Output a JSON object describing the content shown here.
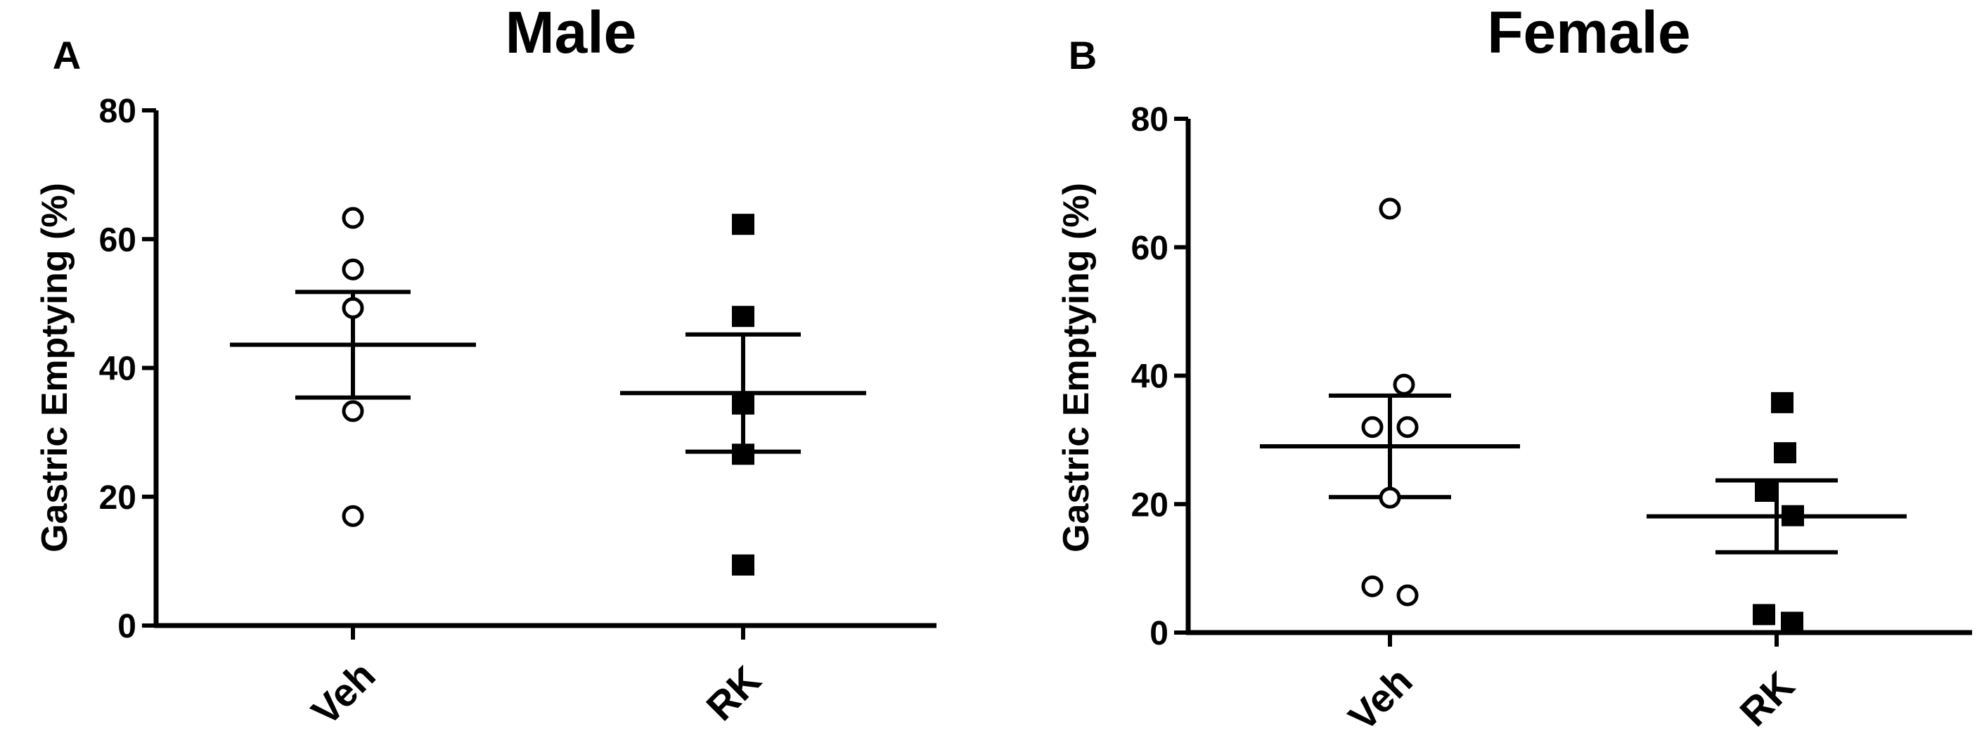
{
  "chart_data": [
    {
      "type": "scatter",
      "panel_label": "A",
      "title": "Male",
      "xlabel": "",
      "ylabel": "Gastric Emptying (%)",
      "ylim": [
        0,
        80
      ],
      "yticks": [
        0,
        20,
        40,
        60,
        80
      ],
      "categories": [
        "Veh",
        "RK"
      ],
      "series": [
        {
          "category": "Veh",
          "marker": "open-circle",
          "values": [
            63.3,
            55.3,
            49.3,
            33.3,
            17.0
          ],
          "mean": 43.6,
          "sem": 8.2
        },
        {
          "category": "RK",
          "marker": "filled-square",
          "values": [
            62.3,
            48.0,
            34.4,
            26.6,
            9.4
          ],
          "mean": 36.1,
          "sem": 9.1
        }
      ]
    },
    {
      "type": "scatter",
      "panel_label": "B",
      "title": "Female",
      "xlabel": "",
      "ylabel": "Gastric Emptying (%)",
      "ylim": [
        0,
        80
      ],
      "yticks": [
        0,
        20,
        40,
        60,
        80
      ],
      "categories": [
        "Veh",
        "RK"
      ],
      "series": [
        {
          "category": "Veh",
          "marker": "open-circle",
          "values": [
            66.0,
            38.6,
            32.0,
            32.0,
            21.0,
            7.2,
            5.8
          ],
          "mean": 29.0,
          "sem": 7.9
        },
        {
          "category": "RK",
          "marker": "filled-square",
          "values": [
            35.8,
            28.0,
            22.0,
            18.2,
            2.8,
            1.6
          ],
          "mean": 18.1,
          "sem": 5.6
        }
      ]
    }
  ],
  "colors": {
    "ink": "#000000",
    "background": "#ffffff"
  }
}
